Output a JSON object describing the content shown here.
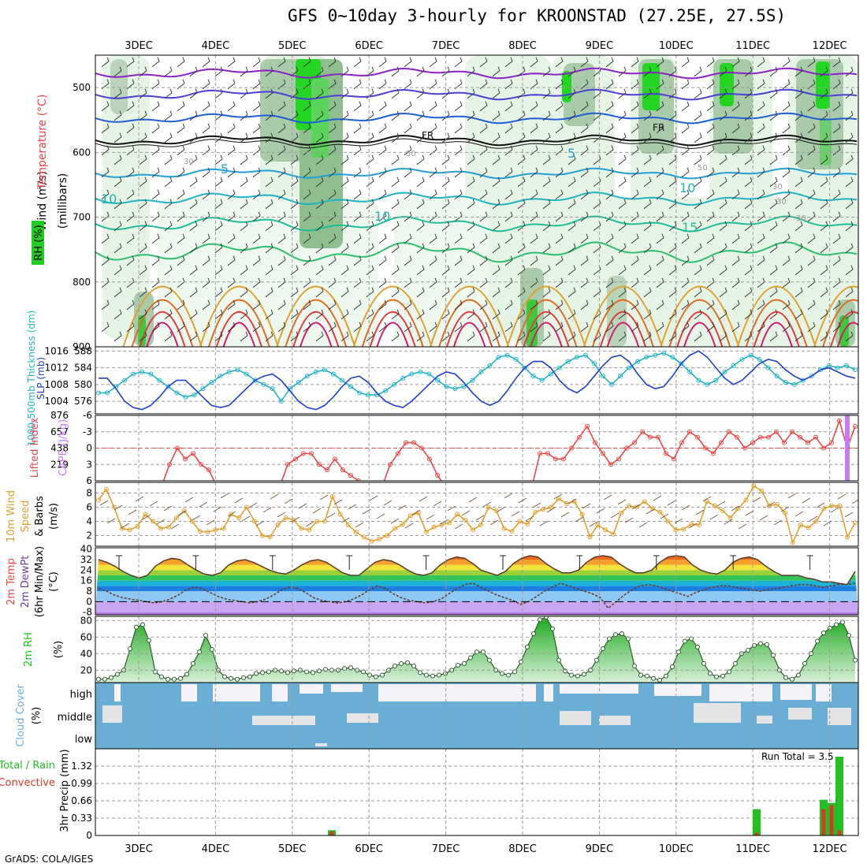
{
  "title": "GFS 0~10day 3-hourly for KROONSTAD (27.25E, 27.5S)",
  "credit": "GrADS: COLA/IGES",
  "colors": {
    "rh": "#19c419",
    "temp": "#e44",
    "dewpt": "#6b3fa0",
    "slp": "#1f3fcf",
    "thick": "#22b3c4",
    "li": "#e84a4a",
    "cape": "#c77cf5",
    "wind": "#e0a030",
    "cloud": "#6aaed6",
    "rain": "#22c022",
    "conv": "#d83a2a"
  },
  "chart_data": [
    {
      "type": "heatmap",
      "id": "upper",
      "categories": [
        "3DEC",
        "4DEC",
        "5DEC",
        "6DEC",
        "7DEC",
        "8DEC",
        "9DEC",
        "10DEC",
        "11DEC",
        "12DEC"
      ],
      "ylabel": "(millibars)",
      "ylabels": [
        "RH (%)",
        "Temperature (°C)",
        "Wind (m/s)"
      ],
      "ylim": [
        900,
        450
      ],
      "yticks": [
        500,
        600,
        700,
        800,
        900
      ],
      "contour_labels": [
        "FR",
        "FR",
        "5",
        "5",
        "10",
        "10",
        "10",
        "15",
        "30",
        "30",
        "30",
        "50",
        "50",
        "30"
      ]
    },
    {
      "type": "line",
      "id": "slp_thick",
      "ylabels": [
        "1000-500mb Thickness (dm)",
        "SLP (mb)"
      ],
      "left_axis": {
        "ticks": [
          576,
          580,
          584,
          588
        ],
        "range": [
          573,
          589
        ]
      },
      "right_axis": {
        "ticks": [
          1004,
          1008,
          1012,
          1016
        ],
        "range": [
          1001,
          1017
        ]
      },
      "series": [
        {
          "name": "1000-500mb Thickness (dm)",
          "values": [
            578,
            578,
            579.5,
            581,
            582.5,
            583,
            582.5,
            581,
            579.5,
            578,
            577,
            577.5,
            579,
            580.5,
            582,
            583,
            583.5,
            582.5,
            581,
            580,
            579,
            576,
            579,
            580.5,
            582,
            583,
            583.5,
            582.5,
            581,
            579.5,
            578,
            577.5,
            577.5,
            578.5,
            580,
            581.5,
            582.5,
            583,
            582.5,
            581,
            579.5,
            579,
            579.5,
            581,
            583,
            584.5,
            586.5,
            587,
            586,
            584,
            582,
            581,
            582.5,
            584,
            585.5,
            586.5,
            587,
            585,
            582,
            580,
            582,
            584,
            585.5,
            586.5,
            587,
            587.5,
            586.5,
            585,
            583,
            581,
            580,
            581,
            583,
            584.5,
            586,
            587,
            586,
            584,
            582,
            580.5,
            580,
            581,
            582,
            583.5,
            584.5,
            584,
            584.5,
            583.5
          ]
        },
        {
          "name": "SLP (mb)",
          "values": [
            1009.5,
            1009.5,
            1007,
            1004,
            1002.5,
            1002,
            1003,
            1005,
            1007.5,
            1009,
            1009,
            1007,
            1005,
            1003,
            1002.5,
            1003,
            1005,
            1007,
            1009,
            1010,
            1010.5,
            1009,
            1006.5,
            1004,
            1002.5,
            1002,
            1003,
            1005,
            1007.5,
            1009.5,
            1010,
            1008.5,
            1006,
            1004,
            1003,
            1002.5,
            1004,
            1006,
            1008,
            1010,
            1011,
            1010.5,
            1008.5,
            1006,
            1004,
            1003,
            1004,
            1006.5,
            1009.5,
            1012,
            1013.5,
            1013.5,
            1012,
            1009,
            1007,
            1006,
            1007.5,
            1010,
            1012.5,
            1014.5,
            1015,
            1013.5,
            1010.5,
            1008,
            1007,
            1007.5,
            1010,
            1013,
            1015,
            1016,
            1014.5,
            1012,
            1009.5,
            1008,
            1009,
            1011,
            1013,
            1014,
            1013.5,
            1011.5,
            1010,
            1009,
            1010,
            1011.5,
            1012,
            1011,
            1010,
            1009.5
          ]
        }
      ]
    },
    {
      "type": "bar",
      "id": "li_cape",
      "ylabels": [
        "Lifted Index",
        "CAPE (J/kg)"
      ],
      "left_axis": {
        "ticks": [
          -6,
          -3,
          0,
          3,
          6
        ],
        "range": [
          6,
          -6
        ],
        "dashed_zero": true
      },
      "right_axis": {
        "ticks": [
          219,
          438,
          657,
          876
        ],
        "range": [
          0,
          876
        ]
      },
      "series": [
        {
          "name": "Lifted Index",
          "values": [
            7,
            7,
            7,
            7,
            7,
            7,
            7,
            7,
            7,
            3,
            0,
            2,
            1,
            3,
            4,
            7,
            7,
            7,
            7,
            7,
            7,
            7,
            7,
            7,
            3,
            2,
            1,
            1,
            3,
            4,
            2,
            4,
            5,
            6,
            7,
            7,
            7,
            3,
            1,
            -1,
            -1,
            0,
            2,
            5,
            7,
            7,
            7,
            7,
            7,
            7,
            7,
            7,
            7,
            7,
            7,
            7,
            1,
            1,
            2,
            2,
            0,
            -2,
            -4,
            -1,
            1,
            3,
            2,
            0,
            -1,
            -3,
            -2,
            -2,
            1,
            2,
            -1,
            -3,
            -2,
            0,
            1,
            -1,
            -3,
            -2,
            0,
            -1,
            -2,
            -2,
            -3,
            -1,
            -3,
            -2,
            -1,
            -2,
            0,
            -1,
            -5,
            0,
            -4
          ]
        },
        {
          "name": "CAPE (J/kg)",
          "values": [
            0,
            0,
            0,
            0,
            0,
            0,
            0,
            0,
            0,
            0,
            0,
            0,
            0,
            0,
            0,
            0,
            0,
            0,
            0,
            0,
            0,
            0,
            0,
            0,
            0,
            0,
            0,
            0,
            0,
            0,
            0,
            0,
            0,
            0,
            0,
            0,
            0,
            0,
            0,
            0,
            0,
            0,
            0,
            0,
            0,
            0,
            0,
            0,
            0,
            0,
            0,
            0,
            0,
            0,
            0,
            0,
            0,
            0,
            0,
            0,
            0,
            0,
            0,
            0,
            0,
            0,
            0,
            0,
            0,
            0,
            0,
            0,
            0,
            0,
            0,
            0,
            0,
            0,
            0,
            0,
            0,
            0,
            0,
            0,
            0,
            0,
            0,
            0,
            0,
            0,
            0,
            0,
            0,
            0,
            0,
            876,
            0
          ]
        }
      ]
    },
    {
      "type": "line",
      "id": "wind10",
      "ylabels": [
        "10m Wind",
        "Speed",
        "& Barbs",
        "(m/s)"
      ],
      "left_axis": {
        "ticks": [
          2,
          4,
          6,
          8
        ],
        "range": [
          0.5,
          9.5
        ]
      },
      "series": [
        {
          "name": "10m Wind Speed",
          "values": [
            7,
            8.5,
            6,
            3,
            2.8,
            3.3,
            5,
            4,
            3,
            3.2,
            4.5,
            5.5,
            4,
            2.6,
            2.5,
            2.8,
            3,
            5,
            4.5,
            6,
            4,
            2,
            1.8,
            3.5,
            4.5,
            4.2,
            3,
            2.8,
            4,
            4,
            7.5,
            5,
            3.5,
            2.5,
            1.8,
            1.2,
            1.5,
            2,
            3,
            3.6,
            4.8,
            5.2,
            2.5,
            3.2,
            3.5,
            3.8,
            5,
            4.2,
            2.8,
            3.5,
            6,
            5.5,
            3,
            2.6,
            4,
            3.6,
            5.3,
            5.7,
            6,
            7.2,
            6.5,
            6.8,
            5,
            1.8,
            3.5,
            2.8,
            2.2,
            5.2,
            6.2,
            6,
            6.8,
            5.8,
            5.3,
            4,
            2.8,
            2.9,
            3.6,
            3.5,
            6.8,
            6.2,
            5.5,
            4.5,
            5.8,
            7,
            9,
            8.3,
            6.2,
            6.4,
            5.2,
            1,
            3.5,
            3.1,
            4,
            5.8,
            6.2,
            6.2,
            1.8,
            3.8
          ]
        }
      ]
    },
    {
      "type": "area",
      "id": "temp",
      "ylabels": [
        "2m Temp",
        "2m DewPt",
        "(6hr Min/Max)",
        "(°C)"
      ],
      "left_axis": {
        "ticks": [
          -8,
          0,
          8,
          16,
          24,
          32,
          40
        ],
        "range": [
          -10,
          41
        ]
      },
      "series": [
        {
          "name": "2m Temp",
          "values": [
            32,
            30,
            27,
            23,
            20,
            18,
            20,
            27,
            31,
            33,
            32,
            28,
            24,
            21,
            20,
            22,
            28,
            31,
            32,
            30,
            27,
            24,
            22,
            21,
            24,
            28,
            31,
            32,
            30,
            26,
            22,
            20,
            20,
            25,
            30,
            32,
            31,
            28,
            24,
            21,
            20,
            22,
            28,
            32,
            34,
            33,
            29,
            24,
            22,
            20,
            23,
            29,
            33,
            35,
            34,
            29,
            25,
            22,
            22,
            24,
            30,
            34,
            35,
            34,
            29,
            25,
            22,
            22,
            24,
            30,
            34,
            35,
            34,
            28,
            24,
            22,
            21,
            24,
            30,
            33,
            34,
            32,
            27,
            23,
            20,
            20,
            20,
            18,
            17,
            15,
            15,
            14,
            13,
            23
          ]
        },
        {
          "name": "2m DewPt",
          "values": [
            10,
            8,
            5,
            3,
            2,
            1,
            0,
            -1,
            0,
            2,
            5,
            9,
            11,
            10,
            7,
            4,
            2,
            1,
            0,
            -1,
            0,
            2,
            5,
            9,
            11,
            10,
            7,
            3,
            1,
            0,
            -1,
            0,
            2,
            5,
            9,
            12,
            10,
            6,
            3,
            1,
            0,
            -1,
            0,
            2,
            6,
            10,
            13,
            14,
            11,
            8,
            5,
            3,
            1,
            -2,
            0,
            4,
            8,
            11,
            14,
            12,
            10,
            8,
            6,
            3,
            -5,
            0,
            5,
            9,
            12,
            13,
            12,
            10,
            8,
            6,
            4,
            7,
            9,
            11,
            12,
            12,
            11,
            10,
            9,
            8,
            9,
            10,
            11,
            12,
            13,
            13,
            12,
            11,
            12,
            13,
            13,
            14
          ]
        }
      ]
    },
    {
      "type": "area",
      "id": "rh",
      "ylabels": [
        "2m RH",
        "(%)"
      ],
      "left_axis": {
        "ticks": [
          20,
          40,
          60,
          80
        ],
        "range": [
          5,
          85
        ]
      },
      "series": [
        {
          "name": "2m RH",
          "values": [
            9,
            9,
            11,
            15,
            20,
            46,
            72,
            75,
            56,
            18,
            12,
            9,
            9,
            10,
            15,
            28,
            42,
            62,
            45,
            20,
            12,
            10,
            9,
            11,
            12,
            16,
            17,
            18,
            20,
            19,
            17,
            19,
            20,
            18,
            17,
            19,
            21,
            20,
            20,
            22,
            23,
            20,
            18,
            14,
            12,
            14,
            20,
            25,
            28,
            29,
            25,
            17,
            14,
            13,
            14,
            16,
            20,
            26,
            28,
            35,
            42,
            42,
            32,
            20,
            16,
            14,
            18,
            30,
            48,
            64,
            81,
            84,
            70,
            32,
            19,
            14,
            13,
            15,
            20,
            32,
            46,
            58,
            63,
            64,
            58,
            25,
            14,
            13,
            10,
            8,
            13,
            24,
            42,
            55,
            58,
            48,
            28,
            16,
            12,
            13,
            18,
            28,
            40,
            44,
            50,
            52,
            51,
            38,
            20,
            11,
            9,
            14,
            28,
            40,
            55,
            65,
            71,
            75,
            78,
            62,
            32
          ]
        }
      ]
    },
    {
      "type": "bar",
      "id": "cloud",
      "ylabels": [
        "Cloud Cover",
        "(%)"
      ],
      "categories_y": [
        "high",
        "middle",
        "low"
      ]
    },
    {
      "type": "bar",
      "id": "precip",
      "ylabels": [
        "3hr Precip (mm)",
        "Total / Rain",
        "Convective"
      ],
      "left_axis": {
        "ticks": [
          0,
          0.33,
          0.66,
          0.99,
          1.32
        ],
        "range": [
          0,
          1.65
        ]
      },
      "annotation": "Run Total = 3.5",
      "series": [
        {
          "name": "Total / Rain",
          "values": [
            {
              "x": 29.6,
              "v": 0.1
            },
            {
              "x": 83.5,
              "v": 0.5
            },
            {
              "x": 92.0,
              "v": 0.68
            },
            {
              "x": 93.0,
              "v": 0.62
            },
            {
              "x": 94.0,
              "v": 1.5
            }
          ]
        },
        {
          "name": "Convective",
          "values": [
            {
              "x": 29.6,
              "v": 0.08
            },
            {
              "x": 83.5,
              "v": 0.05
            },
            {
              "x": 92.0,
              "v": 0.5
            },
            {
              "x": 93.0,
              "v": 0.58
            },
            {
              "x": 94.0,
              "v": 0.1
            }
          ]
        }
      ]
    }
  ]
}
